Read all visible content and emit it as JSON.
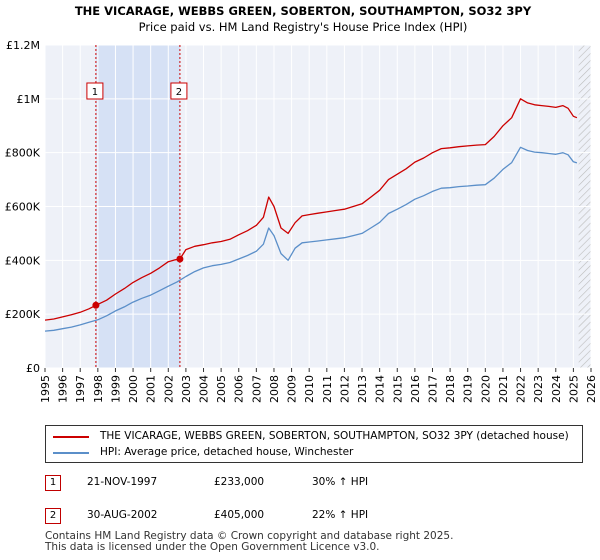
{
  "chart_data": {
    "type": "line",
    "title": "THE VICARAGE, WEBBS GREEN, SOBERTON, SOUTHAMPTON, SO32 3PY",
    "subtitle": "Price paid vs. HM Land Registry's House Price Index (HPI)",
    "xlabel": "",
    "ylabel": "",
    "xlim": [
      1995,
      2026
    ],
    "ylim": [
      0,
      1200000
    ],
    "x_ticks": [
      "1995",
      "1996",
      "1997",
      "1998",
      "1999",
      "2000",
      "2001",
      "2002",
      "2003",
      "2004",
      "2005",
      "2006",
      "2007",
      "2008",
      "2009",
      "2010",
      "2011",
      "2012",
      "2013",
      "2014",
      "2015",
      "2016",
      "2017",
      "2018",
      "2019",
      "2020",
      "2021",
      "2022",
      "2023",
      "2024",
      "2025",
      "2026"
    ],
    "y_ticks": [
      {
        "value": 0,
        "label": "£0"
      },
      {
        "value": 200000,
        "label": "£200K"
      },
      {
        "value": 400000,
        "label": "£400K"
      },
      {
        "value": 600000,
        "label": "£600K"
      },
      {
        "value": 800000,
        "label": "£800K"
      },
      {
        "value": 1000000,
        "label": "£1M"
      },
      {
        "value": 1200000,
        "label": "£1.2M"
      }
    ],
    "grid": true,
    "shaded_region": [
      1997.89,
      2002.66
    ],
    "future_hatch_from": 2025.3,
    "series": [
      {
        "name": "THE VICARAGE, WEBBS GREEN, SOBERTON, SOUTHAMPTON, SO32 3PY (detached house)",
        "color": "#cc0000",
        "x": [
          1995.0,
          1995.5,
          1996.0,
          1996.5,
          1997.0,
          1997.5,
          1997.89,
          1998.5,
          1999.0,
          1999.5,
          2000.0,
          2000.5,
          2001.0,
          2001.5,
          2002.0,
          2002.4,
          2002.66,
          2003.0,
          2003.5,
          2004.0,
          2004.5,
          2005.0,
          2005.5,
          2006.0,
          2006.5,
          2007.0,
          2007.4,
          2007.7,
          2008.0,
          2008.4,
          2008.8,
          2009.2,
          2009.6,
          2010.0,
          2010.5,
          2011.0,
          2011.5,
          2012.0,
          2012.5,
          2013.0,
          2013.5,
          2014.0,
          2014.5,
          2015.0,
          2015.5,
          2016.0,
          2016.5,
          2017.0,
          2017.5,
          2018.0,
          2018.5,
          2019.0,
          2019.5,
          2020.0,
          2020.5,
          2021.0,
          2021.5,
          2022.0,
          2022.4,
          2022.8,
          2023.2,
          2023.6,
          2024.0,
          2024.4,
          2024.7,
          2025.0,
          2025.2
        ],
        "values": [
          178000,
          182000,
          190000,
          198000,
          207000,
          220000,
          233000,
          252000,
          275000,
          295000,
          318000,
          336000,
          352000,
          372000,
          395000,
          402000,
          405000,
          440000,
          452000,
          458000,
          465000,
          470000,
          478000,
          495000,
          510000,
          530000,
          560000,
          635000,
          600000,
          520000,
          500000,
          540000,
          565000,
          570000,
          575000,
          580000,
          585000,
          590000,
          600000,
          610000,
          635000,
          660000,
          700000,
          720000,
          740000,
          765000,
          780000,
          800000,
          815000,
          818000,
          822000,
          825000,
          828000,
          830000,
          860000,
          900000,
          930000,
          1000000,
          985000,
          978000,
          975000,
          972000,
          968000,
          975000,
          965000,
          935000,
          930000
        ]
      },
      {
        "name": "HPI: Average price, detached house, Winchester",
        "color": "#5b8fc9",
        "x": [
          1995.0,
          1995.5,
          1996.0,
          1996.5,
          1997.0,
          1997.5,
          1998.0,
          1998.5,
          1999.0,
          1999.5,
          2000.0,
          2000.5,
          2001.0,
          2001.5,
          2002.0,
          2002.5,
          2003.0,
          2003.5,
          2004.0,
          2004.5,
          2005.0,
          2005.5,
          2006.0,
          2006.5,
          2007.0,
          2007.4,
          2007.7,
          2008.0,
          2008.4,
          2008.8,
          2009.2,
          2009.6,
          2010.0,
          2010.5,
          2011.0,
          2011.5,
          2012.0,
          2012.5,
          2013.0,
          2013.5,
          2014.0,
          2014.5,
          2015.0,
          2015.5,
          2016.0,
          2016.5,
          2017.0,
          2017.5,
          2018.0,
          2018.5,
          2019.0,
          2019.5,
          2020.0,
          2020.5,
          2021.0,
          2021.5,
          2022.0,
          2022.4,
          2022.8,
          2023.2,
          2023.6,
          2024.0,
          2024.4,
          2024.7,
          2025.0,
          2025.2
        ],
        "values": [
          137000,
          140000,
          146000,
          152000,
          160000,
          170000,
          179000,
          194000,
          212000,
          227000,
          245000,
          259000,
          271000,
          287000,
          304000,
          320000,
          340000,
          358000,
          372000,
          380000,
          385000,
          392000,
          405000,
          418000,
          434000,
          460000,
          520000,
          492000,
          425000,
          400000,
          445000,
          465000,
          468000,
          472000,
          476000,
          480000,
          484000,
          492000,
          500000,
          520000,
          541000,
          574000,
          590000,
          607000,
          627000,
          640000,
          656000,
          668000,
          670000,
          674000,
          676000,
          679000,
          681000,
          705000,
          738000,
          763000,
          820000,
          808000,
          802000,
          800000,
          797000,
          794000,
          800000,
          792000,
          766000,
          762000
        ]
      }
    ],
    "sales": [
      {
        "id": "1",
        "x": 1997.89,
        "value": 233000
      },
      {
        "id": "2",
        "x": 2002.66,
        "value": 405000
      }
    ]
  },
  "legend": {
    "items": [
      {
        "label": "THE VICARAGE, WEBBS GREEN, SOBERTON, SOUTHAMPTON, SO32 3PY (detached house)",
        "color": "#cc0000"
      },
      {
        "label": "HPI: Average price, detached house, Winchester",
        "color": "#5b8fc9"
      }
    ]
  },
  "transactions": [
    {
      "id": "1",
      "date": "21-NOV-1997",
      "price": "£233,000",
      "hpi": "30% ↑ HPI"
    },
    {
      "id": "2",
      "date": "30-AUG-2002",
      "price": "£405,000",
      "hpi": "22% ↑ HPI"
    }
  ],
  "footer": {
    "line1": "Contains HM Land Registry data © Crown copyright and database right 2025.",
    "line2": "This data is licensed under the Open Government Licence v3.0."
  }
}
